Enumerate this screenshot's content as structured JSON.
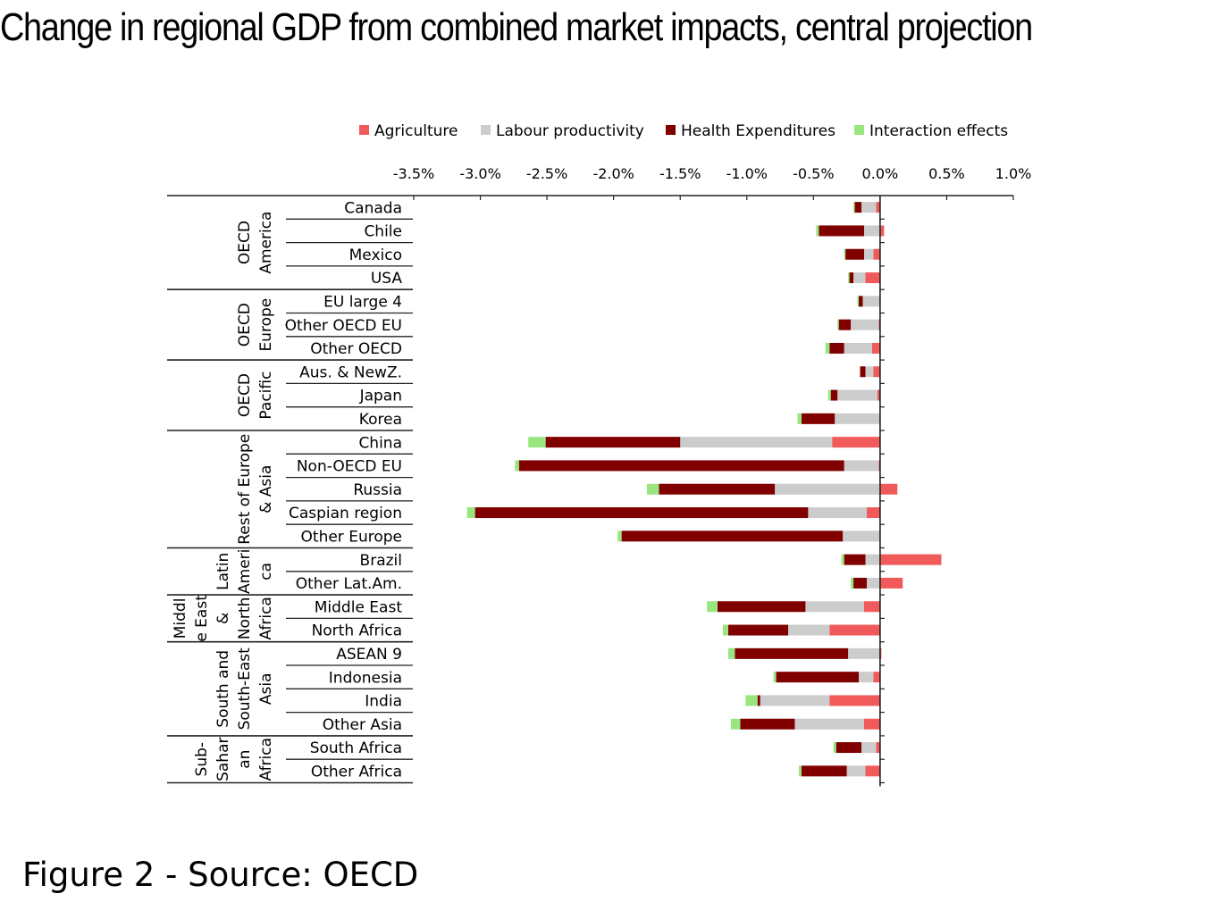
{
  "title": "Change in regional GDP from combined market impacts, central projection",
  "caption": "Figure 2 - Source: OECD",
  "chart_data": {
    "type": "bar",
    "orientation": "horizontal",
    "stacked": true,
    "title": "Change in regional GDP from combined market impacts, central projection",
    "xlabel": "",
    "ylabel": "",
    "xlim": [
      -3.5,
      1.0
    ],
    "x_ticks": [
      -3.5,
      -3.0,
      -2.5,
      -2.0,
      -1.5,
      -1.0,
      -0.5,
      0.0,
      0.5,
      1.0
    ],
    "x_tick_labels": [
      "-3.5%",
      "-3.0%",
      "-2.5%",
      "-2.0%",
      "-1.5%",
      "-1.0%",
      "-0.5%",
      "0.0%",
      "0.5%",
      "1.0%"
    ],
    "legend_position": "top",
    "grid": false,
    "groups": [
      {
        "label": [
          "OECD",
          "America"
        ],
        "rows": 4
      },
      {
        "label": [
          "OECD",
          "Europe"
        ],
        "rows": 3
      },
      {
        "label": [
          "OECD",
          "Pacific"
        ],
        "rows": 3
      },
      {
        "label": [
          "Rest of Europe",
          "& Asia"
        ],
        "rows": 5
      },
      {
        "label": [
          "Latin",
          "Ameri",
          "ca"
        ],
        "rows": 2
      },
      {
        "label": [
          "Middl",
          "e East",
          "&",
          "North",
          "Africa"
        ],
        "rows": 2
      },
      {
        "label": [
          "South and",
          "South-East",
          "Asia"
        ],
        "rows": 4
      },
      {
        "label": [
          "Sub-",
          "Sahar",
          "an",
          "Africa"
        ],
        "rows": 2
      }
    ],
    "categories": [
      "Canada",
      "Chile",
      "Mexico",
      "USA",
      "EU large 4",
      "Other OECD EU",
      "Other OECD",
      "Aus. & NewZ.",
      "Japan",
      "Korea",
      "China",
      "Non-OECD EU",
      "Russia",
      "Caspian region",
      "Other Europe",
      "Brazil",
      "Other Lat.Am.",
      "Middle East",
      "North Africa",
      "ASEAN 9",
      "Indonesia",
      "India",
      "Other Asia",
      "South Africa",
      "Other Africa"
    ],
    "series": [
      {
        "name": "Agriculture",
        "color": "#f05a5a",
        "values": [
          -0.03,
          0.03,
          -0.05,
          -0.11,
          0.0,
          -0.01,
          -0.06,
          -0.05,
          -0.02,
          0.0,
          -0.36,
          -0.01,
          0.13,
          -0.1,
          0.0,
          0.46,
          0.17,
          -0.12,
          -0.38,
          0.01,
          -0.05,
          -0.38,
          -0.12,
          -0.03,
          -0.11
        ]
      },
      {
        "name": "Labour productivity",
        "color": "#cccccc",
        "values": [
          -0.11,
          -0.12,
          -0.07,
          -0.09,
          -0.13,
          -0.21,
          -0.21,
          -0.06,
          -0.3,
          -0.34,
          -1.14,
          -0.26,
          -0.79,
          -0.44,
          -0.28,
          -0.11,
          -0.1,
          -0.44,
          -0.31,
          -0.24,
          -0.11,
          -0.52,
          -0.52,
          -0.11,
          -0.14
        ]
      },
      {
        "name": "Health Expenditures",
        "color": "#800000",
        "values": [
          -0.05,
          -0.34,
          -0.14,
          -0.03,
          -0.03,
          -0.09,
          -0.11,
          -0.04,
          -0.05,
          -0.25,
          -1.01,
          -2.44,
          -0.87,
          -2.5,
          -1.66,
          -0.16,
          -0.1,
          -0.66,
          -0.45,
          -0.85,
          -0.62,
          -0.02,
          -0.41,
          -0.19,
          -0.34
        ]
      },
      {
        "name": "Interaction effects",
        "color": "#99e680",
        "values": [
          -0.01,
          -0.02,
          -0.01,
          -0.01,
          -0.01,
          -0.01,
          -0.03,
          0.0,
          -0.02,
          -0.03,
          -0.13,
          -0.03,
          -0.09,
          -0.06,
          -0.03,
          -0.02,
          -0.02,
          -0.08,
          -0.04,
          -0.05,
          -0.02,
          -0.09,
          -0.07,
          -0.02,
          -0.02
        ]
      }
    ]
  }
}
